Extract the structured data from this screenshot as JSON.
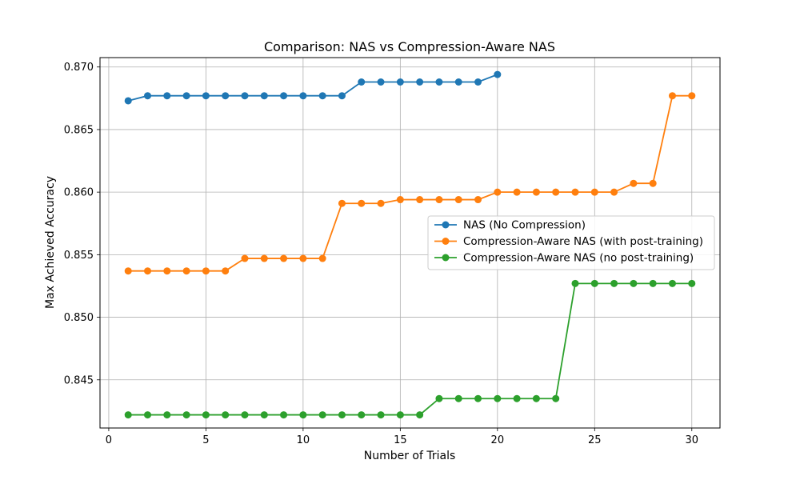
{
  "chart_data": {
    "type": "line",
    "title": "Comparison: NAS vs Compression-Aware NAS",
    "xlabel": "Number of Trials",
    "ylabel": "Max Achieved Accuracy",
    "xlim": [
      -0.45,
      31.45
    ],
    "ylim": [
      0.84115,
      0.87075
    ],
    "xticks": [
      0,
      5,
      10,
      15,
      20,
      25,
      30
    ],
    "xtick_labels": [
      "0",
      "5",
      "10",
      "15",
      "20",
      "25",
      "30"
    ],
    "yticks": [
      0.845,
      0.85,
      0.855,
      0.86,
      0.865,
      0.87
    ],
    "ytick_labels": [
      "0.845",
      "0.850",
      "0.855",
      "0.860",
      "0.865",
      "0.870"
    ],
    "grid": true,
    "legend_position": "center-right",
    "series": [
      {
        "name": "NAS (No Compression)",
        "color": "#1f77b4",
        "x": [
          1,
          2,
          3,
          4,
          5,
          6,
          7,
          8,
          9,
          10,
          11,
          12,
          13,
          14,
          15,
          16,
          17,
          18,
          19,
          20
        ],
        "y": [
          0.8673,
          0.8677,
          0.8677,
          0.8677,
          0.8677,
          0.8677,
          0.8677,
          0.8677,
          0.8677,
          0.8677,
          0.8677,
          0.8677,
          0.8688,
          0.8688,
          0.8688,
          0.8688,
          0.8688,
          0.8688,
          0.8688,
          0.8694
        ]
      },
      {
        "name": "Compression-Aware NAS (with post-training)",
        "color": "#ff7f0e",
        "x": [
          1,
          2,
          3,
          4,
          5,
          6,
          7,
          8,
          9,
          10,
          11,
          12,
          13,
          14,
          15,
          16,
          17,
          18,
          19,
          20,
          21,
          22,
          23,
          24,
          25,
          26,
          27,
          28,
          29,
          30
        ],
        "y": [
          0.8537,
          0.8537,
          0.8537,
          0.8537,
          0.8537,
          0.8537,
          0.8547,
          0.8547,
          0.8547,
          0.8547,
          0.8547,
          0.8591,
          0.8591,
          0.8591,
          0.8594,
          0.8594,
          0.8594,
          0.8594,
          0.8594,
          0.86,
          0.86,
          0.86,
          0.86,
          0.86,
          0.86,
          0.86,
          0.8607,
          0.8607,
          0.8677,
          0.8677
        ]
      },
      {
        "name": "Compression-Aware NAS (no post-training)",
        "color": "#2ca02c",
        "x": [
          1,
          2,
          3,
          4,
          5,
          6,
          7,
          8,
          9,
          10,
          11,
          12,
          13,
          14,
          15,
          16,
          17,
          18,
          19,
          20,
          21,
          22,
          23,
          24,
          25,
          26,
          27,
          28,
          29,
          30
        ],
        "y": [
          0.8422,
          0.8422,
          0.8422,
          0.8422,
          0.8422,
          0.8422,
          0.8422,
          0.8422,
          0.8422,
          0.8422,
          0.8422,
          0.8422,
          0.8422,
          0.8422,
          0.8422,
          0.8422,
          0.8435,
          0.8435,
          0.8435,
          0.8435,
          0.8435,
          0.8435,
          0.8435,
          0.8527,
          0.8527,
          0.8527,
          0.8527,
          0.8527,
          0.8527,
          0.8527
        ]
      }
    ]
  }
}
